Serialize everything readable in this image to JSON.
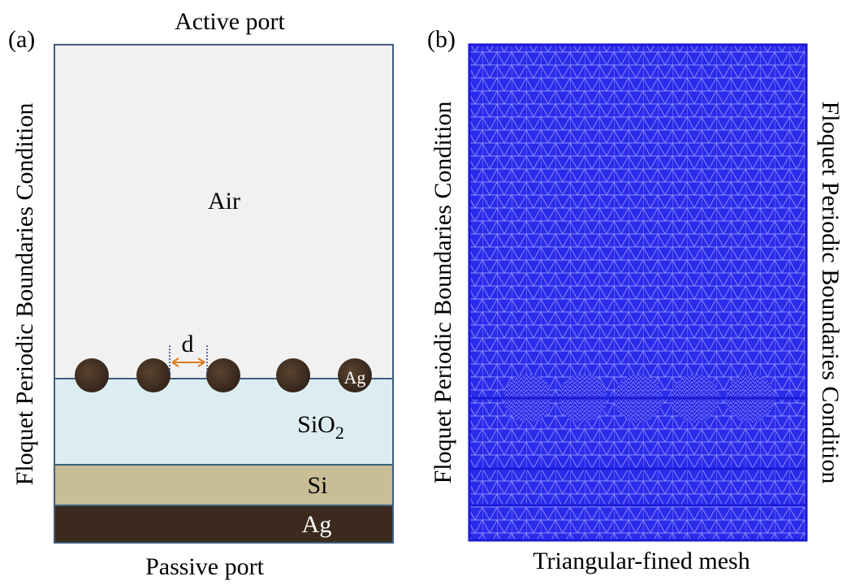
{
  "panel_a": {
    "label": "(a)",
    "top_port": "Active port",
    "bottom_port": "Passive port",
    "boundary_label": "Floquet Periodic Boundaries Condition",
    "layers": {
      "air": "Air",
      "sio2": {
        "text": "SiO",
        "subscript": "2"
      },
      "si": "Si",
      "ag": "Ag"
    },
    "particle_label": "Ag",
    "spacing_label": "d"
  },
  "panel_b": {
    "label": "(b)",
    "left_boundary_label": "Floquet Periodic Boundaries Condition",
    "right_boundary_label": "Floquet Periodic Boundaries Condition",
    "caption": "Triangular-fined mesh"
  }
}
